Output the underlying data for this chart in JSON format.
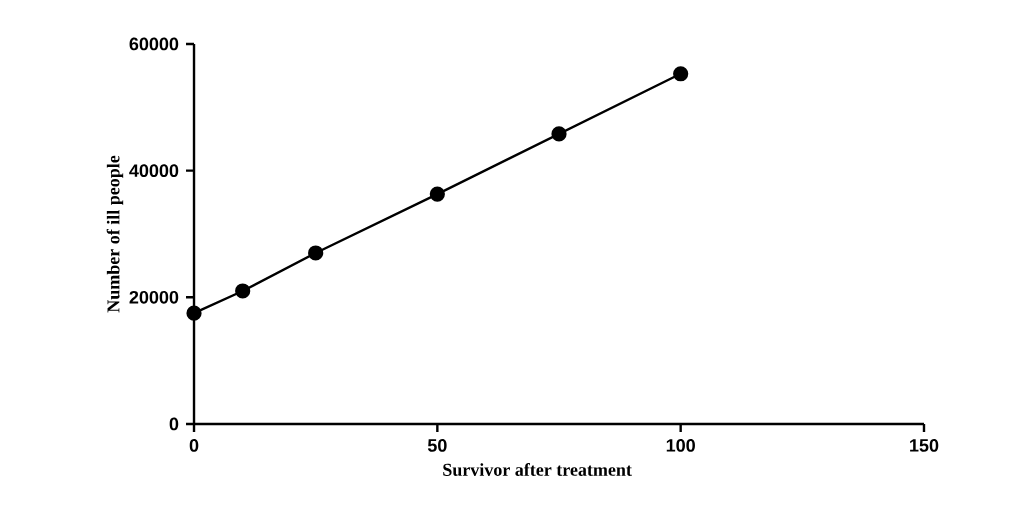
{
  "chart_data": {
    "type": "line",
    "xlabel": "Survivor after treatment",
    "ylabel": "Number of ill people",
    "x": [
      0,
      10,
      25,
      50,
      75,
      100
    ],
    "series": [
      {
        "color": "#000000",
        "values": [
          17500,
          21000,
          27000,
          36300,
          45800,
          55300
        ]
      }
    ],
    "xlim": [
      0,
      150
    ],
    "xticks": [
      0,
      50,
      100,
      150
    ],
    "ylim": [
      0,
      60000
    ],
    "yticks": [
      0,
      20000,
      40000,
      60000
    ],
    "marker": "circle",
    "line_style": "solid",
    "grid": false
  }
}
